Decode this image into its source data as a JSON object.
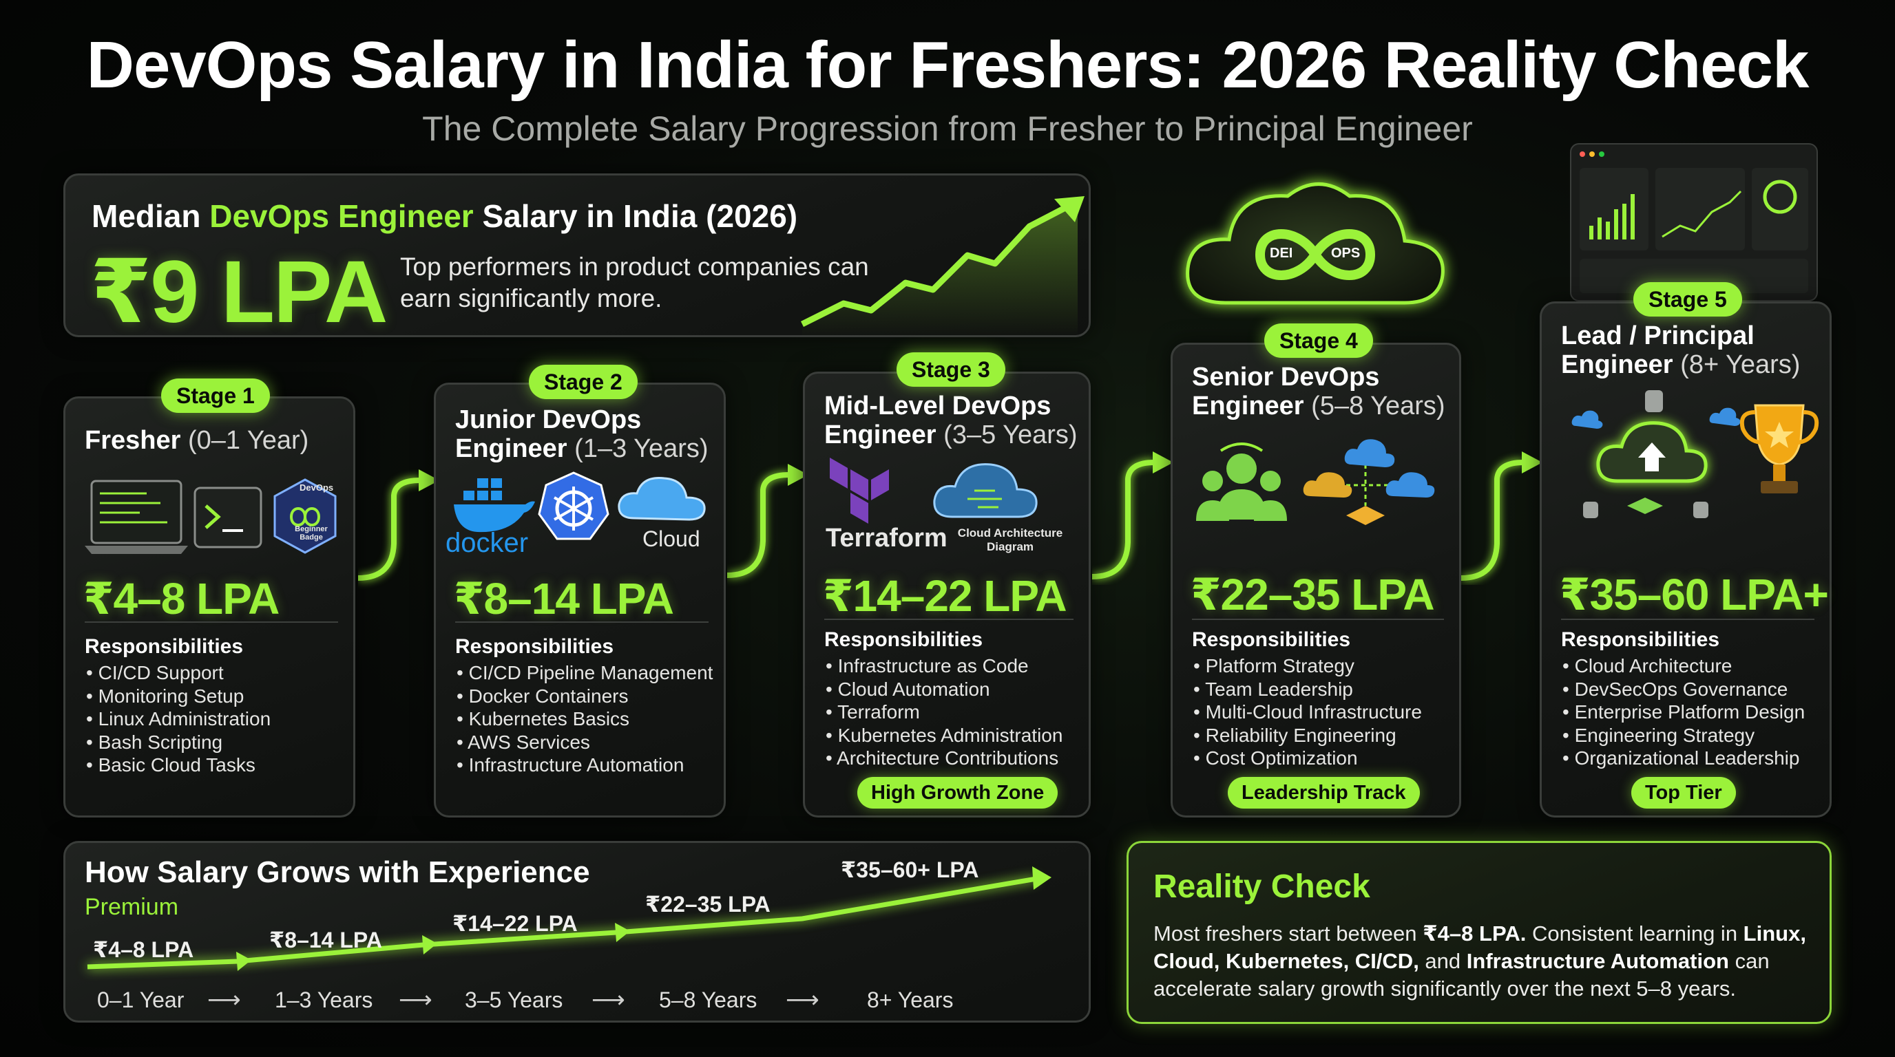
{
  "header": {
    "title": "DevOps Salary in India for Freshers: 2026 Reality Check",
    "subtitle": "The Complete Salary Progression from Fresher to Principal Engineer"
  },
  "median": {
    "heading_pre": "Median ",
    "heading_accent": "DevOps Engineer",
    "heading_post": " Salary in India (2026)",
    "value": "₹9 LPA",
    "note": "Top performers in product companies can earn significantly more."
  },
  "stages": [
    {
      "badge": "Stage 1",
      "title": "Fresher",
      "years": "(0–1 Year)",
      "salary": "₹4–8 LPA",
      "responsibilities_label": "Responsibilities",
      "responsibilities": [
        "CI/CD Support",
        "Monitoring Setup",
        "Linux Administration",
        "Bash Scripting",
        "Basic Cloud Tasks"
      ],
      "icon_badge_top": "DevOps",
      "icon_badge_bottom": "Beginner Badge"
    },
    {
      "badge": "Stage 2",
      "title": "Junior DevOps Engineer",
      "years": "(1–3 Years)",
      "salary": "₹8–14 LPA",
      "responsibilities_label": "Responsibilities",
      "responsibilities": [
        "CI/CD Pipeline Management",
        "Docker Containers",
        "Kubernetes Basics",
        "AWS Services",
        "Infrastructure Automation"
      ],
      "icon_labels": [
        "docker",
        "Cloud"
      ]
    },
    {
      "badge": "Stage 3",
      "title": "Mid-Level DevOps Engineer",
      "years": "(3–5 Years)",
      "salary": "₹14–22 LPA",
      "responsibilities_label": "Responsibilities",
      "responsibilities": [
        "Infrastructure as Code",
        "Cloud Automation",
        "Terraform",
        "Kubernetes Administration",
        "Architecture Contributions"
      ],
      "icon_labels": [
        "Terraform",
        "Cloud Architecture Diagram"
      ],
      "tag": "High Growth Zone"
    },
    {
      "badge": "Stage 4",
      "title": "Senior DevOps Engineer",
      "years": "(5–8 Years)",
      "salary": "₹22–35 LPA",
      "responsibilities_label": "Responsibilities",
      "responsibilities": [
        "Platform Strategy",
        "Team Leadership",
        "Multi-Cloud Infrastructure",
        "Reliability Engineering",
        "Cost Optimization"
      ],
      "tag": "Leadership Track"
    },
    {
      "badge": "Stage 5",
      "title": "Lead / Principal Engineer",
      "years": "(8+ Years)",
      "salary": "₹35–60 LPA+",
      "responsibilities_label": "Responsibilities",
      "responsibilities": [
        "Cloud Architecture",
        "DevSecOps Governance",
        "Enterprise Platform Design",
        "Engineering Strategy",
        "Organizational Leadership"
      ],
      "tag": "Top Tier"
    }
  ],
  "devops_logo": {
    "left": "DEI",
    "right": "OPS"
  },
  "growth": {
    "title": "How Salary Grows with Experience",
    "subtitle": "Premium",
    "points": [
      {
        "salary": "₹4–8 LPA",
        "years": "0–1 Year"
      },
      {
        "salary": "₹8–14 LPA",
        "years": "1–3 Years"
      },
      {
        "salary": "₹14–22 LPA",
        "years": "3–5 Years"
      },
      {
        "salary": "₹22–35 LPA",
        "years": "5–8 Years"
      },
      {
        "salary": "₹35–60+ LPA",
        "years": "8+ Years"
      }
    ],
    "arrow_glyph": "⟶"
  },
  "reality": {
    "title": "Reality Check",
    "t1": "Most freshers start between ",
    "b1": "₹4–8 LPA.",
    "t2": " Consistent learning in ",
    "b2": "Linux, Cloud, Kubernetes, CI/CD,",
    "t3": " and ",
    "b3": "Infrastructure Automation",
    "t4": " can accelerate salary growth significantly over the next 5–8 years."
  },
  "colors": {
    "accent": "#9bf23a",
    "background": "#070907",
    "card": "#181a18"
  }
}
